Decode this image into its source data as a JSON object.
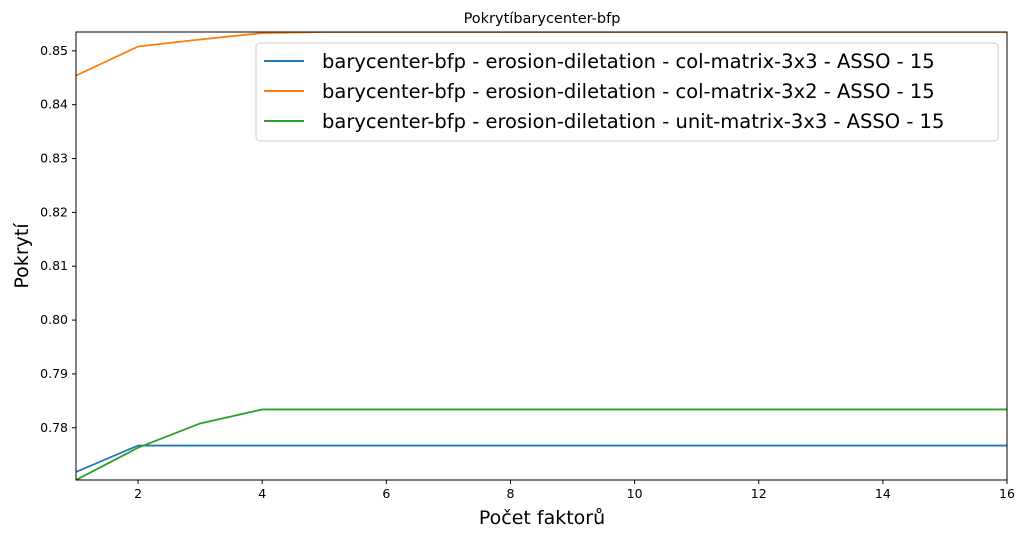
{
  "chart_data": {
    "type": "line",
    "title": "Pokrytíbarycenter-bfp",
    "xlabel": "Počet faktorů",
    "ylabel": "Pokrytí",
    "xlim": [
      1,
      16
    ],
    "ylim": [
      0.7703,
      0.8535
    ],
    "xticks": [
      2,
      4,
      6,
      8,
      10,
      12,
      14,
      16
    ],
    "yticks": [
      0.78,
      0.79,
      0.8,
      0.81,
      0.82,
      0.83,
      0.84,
      0.85
    ],
    "ytick_labels": [
      "0.78",
      "0.79",
      "0.80",
      "0.81",
      "0.82",
      "0.83",
      "0.84",
      "0.85"
    ],
    "grid": false,
    "legend_position": "top-right",
    "x": [
      1,
      2,
      3,
      4,
      5,
      6,
      7,
      8,
      9,
      10,
      11,
      12,
      13,
      14,
      15,
      16
    ],
    "series": [
      {
        "name": "barycenter-bfp - erosion-diletation - col-matrix-3x3 - ASSO - 15",
        "color": "#1f77b4",
        "values": [
          0.7718,
          0.7767,
          0.7767,
          0.7767,
          0.7767,
          0.7767,
          0.7767,
          0.7767,
          0.7767,
          0.7767,
          0.7767,
          0.7767,
          0.7767,
          0.7767,
          0.7767,
          0.7767
        ]
      },
      {
        "name": "barycenter-bfp - erosion-diletation - col-matrix-3x2 - ASSO - 15",
        "color": "#ff7f0e",
        "values": [
          0.8454,
          0.8508,
          0.8521,
          0.8533,
          0.8535,
          0.8535,
          0.8535,
          0.8535,
          0.8535,
          0.8535,
          0.8535,
          0.8535,
          0.8535,
          0.8535,
          0.8535,
          0.8535
        ]
      },
      {
        "name": "barycenter-bfp - erosion-diletation - unit-matrix-3x3 - ASSO - 15",
        "color": "#2ca02c",
        "values": [
          0.7703,
          0.7763,
          0.7808,
          0.7834,
          0.7834,
          0.7834,
          0.7834,
          0.7834,
          0.7834,
          0.7834,
          0.7834,
          0.7834,
          0.7834,
          0.7834,
          0.7834,
          0.7834
        ]
      }
    ]
  }
}
